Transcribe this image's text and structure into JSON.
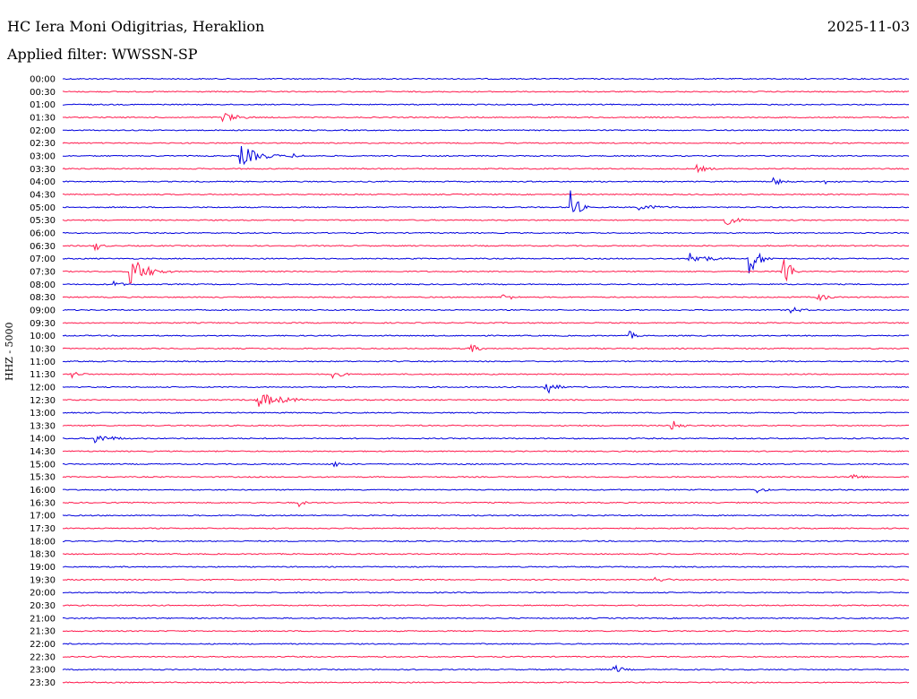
{
  "header": {
    "station": "HC Iera Moni Odigitrias, Heraklion",
    "date": "2025-11-03",
    "filter": "Applied filter: WWSSN-SP"
  },
  "chart_data": {
    "type": "helicorder",
    "ylabel": "HHZ - 5000",
    "colors": {
      "even": "#0000dd",
      "odd": "#ff1a4d"
    },
    "rows": [
      "00:00",
      "00:30",
      "01:00",
      "01:30",
      "02:00",
      "02:30",
      "03:00",
      "03:30",
      "04:00",
      "04:30",
      "05:00",
      "05:30",
      "06:00",
      "06:30",
      "07:00",
      "07:30",
      "08:00",
      "08:30",
      "09:00",
      "09:30",
      "10:00",
      "10:30",
      "11:00",
      "11:30",
      "12:00",
      "12:30",
      "13:00",
      "13:30",
      "14:00",
      "14:30",
      "15:00",
      "15:30",
      "16:00",
      "16:30",
      "17:00",
      "17:30",
      "18:00",
      "18:30",
      "19:00",
      "19:30",
      "20:00",
      "20:30",
      "21:00",
      "21:30",
      "22:00",
      "22:30",
      "23:00",
      "23:30"
    ],
    "events": [
      {
        "row": "01:30",
        "t": 0.19,
        "amp": 6,
        "dur": 0.05
      },
      {
        "row": "03:00",
        "t": 0.21,
        "amp": 12,
        "dur": 0.06
      },
      {
        "row": "03:00",
        "t": 0.27,
        "amp": 3,
        "dur": 0.04
      },
      {
        "row": "03:30",
        "t": 0.75,
        "amp": 4,
        "dur": 0.04
      },
      {
        "row": "04:00",
        "t": 0.84,
        "amp": 4,
        "dur": 0.04
      },
      {
        "row": "04:00",
        "t": 0.9,
        "amp": 3,
        "dur": 0.04
      },
      {
        "row": "05:00",
        "t": 0.6,
        "amp": 24,
        "dur": 0.02
      },
      {
        "row": "05:00",
        "t": 0.68,
        "amp": 3,
        "dur": 0.1
      },
      {
        "row": "05:30",
        "t": 0.78,
        "amp": 7,
        "dur": 0.04
      },
      {
        "row": "06:30",
        "t": 0.04,
        "amp": 5,
        "dur": 0.02
      },
      {
        "row": "07:00",
        "t": 0.74,
        "amp": 7,
        "dur": 0.06
      },
      {
        "row": "07:00",
        "t": 0.81,
        "amp": 20,
        "dur": 0.03
      },
      {
        "row": "07:30",
        "t": 0.08,
        "amp": 18,
        "dur": 0.05
      },
      {
        "row": "07:30",
        "t": 0.85,
        "amp": 30,
        "dur": 0.02
      },
      {
        "row": "08:00",
        "t": 0.06,
        "amp": 4,
        "dur": 0.03
      },
      {
        "row": "08:30",
        "t": 0.89,
        "amp": 5,
        "dur": 0.04
      },
      {
        "row": "08:30",
        "t": 0.52,
        "amp": 4,
        "dur": 0.04
      },
      {
        "row": "09:00",
        "t": 0.86,
        "amp": 4,
        "dur": 0.04
      },
      {
        "row": "10:00",
        "t": 0.67,
        "amp": 5,
        "dur": 0.02
      },
      {
        "row": "10:30",
        "t": 0.48,
        "amp": 6,
        "dur": 0.03
      },
      {
        "row": "11:30",
        "t": 0.01,
        "amp": 5,
        "dur": 0.03
      },
      {
        "row": "11:30",
        "t": 0.32,
        "amp": 4,
        "dur": 0.04
      },
      {
        "row": "12:00",
        "t": 0.57,
        "amp": 10,
        "dur": 0.03
      },
      {
        "row": "12:30",
        "t": 0.23,
        "amp": 9,
        "dur": 0.08
      },
      {
        "row": "13:30",
        "t": 0.72,
        "amp": 6,
        "dur": 0.03
      },
      {
        "row": "14:00",
        "t": 0.04,
        "amp": 5,
        "dur": 0.06
      },
      {
        "row": "15:00",
        "t": 0.32,
        "amp": 5,
        "dur": 0.02
      },
      {
        "row": "15:30",
        "t": 0.93,
        "amp": 6,
        "dur": 0.03
      },
      {
        "row": "16:00",
        "t": 0.82,
        "amp": 4,
        "dur": 0.03
      },
      {
        "row": "16:30",
        "t": 0.28,
        "amp": 4,
        "dur": 0.02
      },
      {
        "row": "19:30",
        "t": 0.7,
        "amp": 4,
        "dur": 0.04
      },
      {
        "row": "23:00",
        "t": 0.65,
        "amp": 6,
        "dur": 0.03
      }
    ]
  }
}
